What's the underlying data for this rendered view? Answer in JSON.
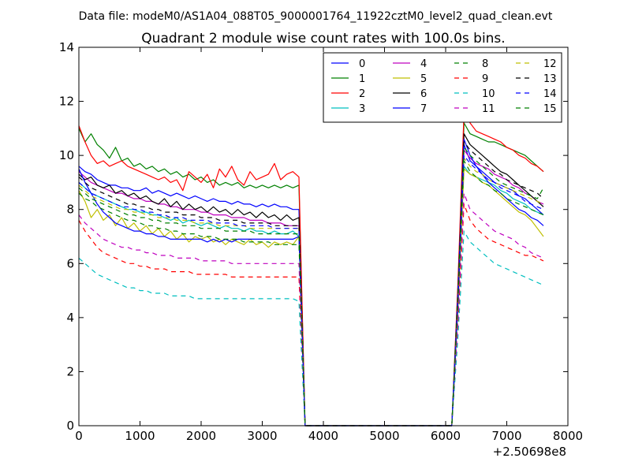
{
  "chart_data": {
    "type": "line",
    "suptitle": "Data file: modeM0/AS1A04_088T05_9000001764_11922cztM0_level2_quad_clean.evt",
    "title": "Quadrant 2 module wise count rates with 100.0s bins.",
    "xlabel": "",
    "ylabel": "",
    "x_offset_label": "+2.50698e8",
    "xlim": [
      0,
      8000
    ],
    "ylim": [
      0,
      14
    ],
    "xticks": [
      0,
      1000,
      2000,
      3000,
      4000,
      5000,
      6000,
      7000,
      8000
    ],
    "yticks": [
      0,
      2,
      4,
      6,
      8,
      10,
      12,
      14
    ],
    "grid": false,
    "legend_position": "top-right",
    "legend_columns": 4,
    "bin_seconds": 100,
    "segments": [
      {
        "x_start": 0,
        "x_end": 3600,
        "step": 100
      },
      {
        "x_start": 6300,
        "x_end": 7600,
        "step": 100
      }
    ],
    "ramp_down": {
      "x": [
        3600,
        3700
      ],
      "factors": [
        0.82,
        0.0
      ]
    },
    "ramp_up": {
      "x": [
        6100,
        6200,
        6300
      ],
      "factors": [
        0.0,
        0.45,
        1.0
      ]
    },
    "series": [
      {
        "name": "0",
        "color": "#0000ff",
        "dash": "solid",
        "seg1": [
          9.6,
          9.4,
          9.3,
          9.1,
          9.0,
          8.9,
          8.9,
          8.8,
          8.8,
          8.7,
          8.7,
          8.8,
          8.6,
          8.7,
          8.6,
          8.5,
          8.6,
          8.5,
          8.4,
          8.5,
          8.4,
          8.3,
          8.4,
          8.3,
          8.3,
          8.2,
          8.3,
          8.2,
          8.2,
          8.1,
          8.2,
          8.1,
          8.2,
          8.1,
          8.1,
          8.0,
          8.0
        ],
        "seg2": [
          10.4,
          9.8,
          9.6,
          9.4,
          9.2,
          9.0,
          8.9,
          8.8,
          8.7,
          8.5,
          8.4,
          8.2,
          8.0,
          7.8
        ]
      },
      {
        "name": "1",
        "color": "#008000",
        "dash": "solid",
        "seg1": [
          11.0,
          10.5,
          10.8,
          10.4,
          10.2,
          9.9,
          10.3,
          9.8,
          9.9,
          9.6,
          9.7,
          9.5,
          9.6,
          9.4,
          9.5,
          9.3,
          9.4,
          9.2,
          9.3,
          9.1,
          9.2,
          9.0,
          9.1,
          8.9,
          9.0,
          8.9,
          9.0,
          8.8,
          8.9,
          8.8,
          8.9,
          8.8,
          8.9,
          8.8,
          8.9,
          8.8,
          8.9
        ],
        "seg2": [
          11.2,
          10.8,
          10.7,
          10.6,
          10.5,
          10.5,
          10.4,
          10.3,
          10.2,
          10.1,
          10.0,
          9.8,
          9.6,
          9.4
        ]
      },
      {
        "name": "2",
        "color": "#ff0000",
        "dash": "solid",
        "seg1": [
          11.1,
          10.5,
          10.0,
          9.7,
          9.8,
          9.6,
          9.7,
          9.8,
          9.6,
          9.5,
          9.4,
          9.3,
          9.2,
          9.1,
          9.2,
          9.0,
          9.1,
          8.7,
          9.4,
          9.2,
          9.0,
          9.3,
          8.8,
          9.5,
          9.2,
          9.6,
          9.1,
          8.9,
          9.4,
          9.1,
          9.2,
          9.3,
          9.7,
          9.1,
          9.3,
          9.4,
          9.2
        ],
        "seg2": [
          11.6,
          11.2,
          10.9,
          10.8,
          10.7,
          10.6,
          10.5,
          10.3,
          10.2,
          10.0,
          9.9,
          9.7,
          9.6,
          9.4
        ]
      },
      {
        "name": "3",
        "color": "#00bfbf",
        "dash": "solid",
        "seg1": [
          9.0,
          8.8,
          8.6,
          8.5,
          8.4,
          8.3,
          8.2,
          8.1,
          8.0,
          8.0,
          7.9,
          7.9,
          7.8,
          7.8,
          7.7,
          7.6,
          7.7,
          7.5,
          7.6,
          7.5,
          7.4,
          7.5,
          7.4,
          7.3,
          7.4,
          7.3,
          7.3,
          7.2,
          7.3,
          7.2,
          7.2,
          7.1,
          7.2,
          7.1,
          7.1,
          7.2,
          7.0
        ],
        "seg2": [
          9.6,
          9.3,
          9.2,
          9.1,
          9.0,
          8.9,
          8.7,
          8.6,
          8.4,
          8.3,
          8.2,
          8.0,
          7.9,
          7.8
        ]
      },
      {
        "name": "4",
        "color": "#bf00bf",
        "dash": "solid",
        "seg1": [
          9.4,
          9.2,
          9.0,
          8.9,
          8.8,
          8.7,
          8.6,
          8.6,
          8.5,
          8.4,
          8.4,
          8.3,
          8.3,
          8.2,
          8.2,
          8.1,
          8.1,
          8.0,
          8.0,
          8.0,
          7.9,
          7.9,
          7.8,
          7.8,
          7.8,
          7.7,
          7.7,
          7.7,
          7.6,
          7.6,
          7.6,
          7.5,
          7.5,
          7.5,
          7.4,
          7.4,
          7.4
        ],
        "seg2": [
          10.2,
          9.9,
          9.7,
          9.6,
          9.5,
          9.3,
          9.2,
          9.1,
          8.9,
          8.8,
          8.6,
          8.5,
          8.3,
          8.2
        ]
      },
      {
        "name": "5",
        "color": "#bfbf00",
        "dash": "solid",
        "seg1": [
          8.7,
          8.3,
          7.7,
          8.0,
          7.6,
          7.8,
          7.4,
          7.7,
          7.3,
          7.5,
          7.2,
          7.4,
          7.1,
          7.3,
          7.0,
          7.2,
          6.9,
          7.1,
          6.8,
          7.0,
          6.9,
          7.0,
          6.8,
          6.9,
          6.7,
          6.9,
          6.8,
          6.7,
          6.9,
          6.7,
          6.8,
          6.6,
          6.8,
          6.7,
          6.8,
          6.7,
          7.0
        ],
        "seg2": [
          9.5,
          9.3,
          9.2,
          9.0,
          8.9,
          8.7,
          8.5,
          8.3,
          8.1,
          7.9,
          7.8,
          7.6,
          7.3,
          7.0
        ]
      },
      {
        "name": "6",
        "color": "#000000",
        "dash": "solid",
        "seg1": [
          9.3,
          9.1,
          9.2,
          8.9,
          8.8,
          8.9,
          8.6,
          8.7,
          8.5,
          8.6,
          8.4,
          8.5,
          8.3,
          8.2,
          8.4,
          8.1,
          8.3,
          8.0,
          8.2,
          8.0,
          8.1,
          7.9,
          8.1,
          7.9,
          8.0,
          7.8,
          8.0,
          7.8,
          7.9,
          7.7,
          7.9,
          7.7,
          7.8,
          7.6,
          7.8,
          7.6,
          7.7
        ],
        "seg2": [
          10.8,
          10.4,
          10.2,
          10.0,
          9.8,
          9.6,
          9.4,
          9.3,
          9.1,
          8.9,
          8.7,
          8.5,
          8.3,
          8.1
        ]
      },
      {
        "name": "7",
        "color": "#0000ff",
        "dash": "solid",
        "seg1": [
          9.5,
          9.0,
          8.6,
          8.2,
          7.9,
          7.7,
          7.5,
          7.4,
          7.3,
          7.2,
          7.2,
          7.1,
          7.1,
          7.0,
          7.0,
          6.9,
          6.9,
          6.9,
          6.9,
          6.9,
          6.9,
          6.8,
          6.9,
          6.8,
          6.9,
          6.8,
          6.9,
          6.9,
          6.9,
          6.9,
          6.9,
          6.9,
          6.9,
          6.9,
          6.9,
          6.9,
          7.0
        ],
        "seg2": [
          10.6,
          10.0,
          9.6,
          9.3,
          9.0,
          8.8,
          8.6,
          8.4,
          8.2,
          8.0,
          7.9,
          7.7,
          7.6,
          7.4
        ]
      },
      {
        "name": "8",
        "color": "#008000",
        "dash": "dashed",
        "seg1": [
          8.6,
          8.4,
          8.3,
          8.1,
          8.0,
          7.9,
          7.8,
          7.7,
          7.6,
          7.6,
          7.5,
          7.4,
          7.4,
          7.3,
          7.3,
          7.2,
          7.2,
          7.1,
          7.1,
          7.1,
          7.0,
          7.0,
          7.0,
          6.9,
          6.9,
          6.9,
          6.9,
          6.8,
          6.8,
          6.8,
          6.8,
          6.8,
          6.7,
          6.7,
          6.7,
          6.7,
          6.7
        ],
        "seg2": [
          9.8,
          9.4,
          9.2,
          9.0,
          8.9,
          8.7,
          8.6,
          8.4,
          8.3,
          8.2,
          8.1,
          8.0,
          7.9,
          7.8
        ]
      },
      {
        "name": "9",
        "color": "#ff0000",
        "dash": "dashed",
        "seg1": [
          7.6,
          7.2,
          6.9,
          6.6,
          6.4,
          6.3,
          6.2,
          6.1,
          6.0,
          6.0,
          5.9,
          5.9,
          5.8,
          5.8,
          5.8,
          5.7,
          5.7,
          5.7,
          5.7,
          5.6,
          5.6,
          5.6,
          5.6,
          5.6,
          5.6,
          5.5,
          5.5,
          5.5,
          5.5,
          5.5,
          5.5,
          5.5,
          5.5,
          5.5,
          5.5,
          5.5,
          5.5
        ],
        "seg2": [
          8.2,
          7.6,
          7.3,
          7.1,
          6.9,
          6.8,
          6.7,
          6.6,
          6.5,
          6.4,
          6.3,
          6.3,
          6.2,
          6.1
        ]
      },
      {
        "name": "10",
        "color": "#00bfbf",
        "dash": "dashed",
        "seg1": [
          6.2,
          6.0,
          5.8,
          5.6,
          5.5,
          5.4,
          5.3,
          5.2,
          5.1,
          5.1,
          5.0,
          5.0,
          4.9,
          4.9,
          4.9,
          4.8,
          4.8,
          4.8,
          4.8,
          4.7,
          4.7,
          4.7,
          4.7,
          4.7,
          4.7,
          4.7,
          4.7,
          4.7,
          4.7,
          4.7,
          4.7,
          4.7,
          4.7,
          4.7,
          4.7,
          4.7,
          4.6
        ],
        "seg2": [
          7.2,
          6.8,
          6.6,
          6.4,
          6.2,
          6.0,
          5.9,
          5.8,
          5.7,
          5.6,
          5.5,
          5.4,
          5.3,
          5.2
        ]
      },
      {
        "name": "11",
        "color": "#bf00bf",
        "dash": "dashed",
        "seg1": [
          7.8,
          7.5,
          7.3,
          7.1,
          6.9,
          6.8,
          6.7,
          6.6,
          6.6,
          6.5,
          6.5,
          6.4,
          6.4,
          6.3,
          6.3,
          6.3,
          6.2,
          6.2,
          6.2,
          6.2,
          6.1,
          6.1,
          6.1,
          6.1,
          6.1,
          6.0,
          6.0,
          6.0,
          6.0,
          6.0,
          6.0,
          6.0,
          6.0,
          6.0,
          6.0,
          6.0,
          6.0
        ],
        "seg2": [
          8.6,
          8.0,
          7.8,
          7.6,
          7.4,
          7.2,
          7.1,
          7.0,
          6.9,
          6.7,
          6.6,
          6.4,
          6.3,
          6.2
        ]
      },
      {
        "name": "12",
        "color": "#bfbf00",
        "dash": "dashed",
        "seg1": [
          8.9,
          8.7,
          8.5,
          8.4,
          8.3,
          8.2,
          8.1,
          8.0,
          8.0,
          7.9,
          7.9,
          7.8,
          7.8,
          7.7,
          7.7,
          7.7,
          7.6,
          7.6,
          7.6,
          7.5,
          7.5,
          7.5,
          7.5,
          7.4,
          7.4,
          7.4,
          7.4,
          7.4,
          7.3,
          7.3,
          7.3,
          7.3,
          7.3,
          7.3,
          7.3,
          7.3,
          7.3
        ],
        "seg2": [
          9.9,
          9.6,
          9.4,
          9.3,
          9.1,
          9.0,
          8.9,
          8.8,
          8.7,
          8.6,
          8.5,
          8.4,
          8.3,
          8.2
        ]
      },
      {
        "name": "13",
        "color": "#000000",
        "dash": "dashed",
        "seg1": [
          9.2,
          9.0,
          8.8,
          8.7,
          8.6,
          8.5,
          8.4,
          8.3,
          8.2,
          8.2,
          8.1,
          8.1,
          8.0,
          8.0,
          7.9,
          7.9,
          7.9,
          7.8,
          7.8,
          7.8,
          7.7,
          7.7,
          7.7,
          7.6,
          7.6,
          7.6,
          7.6,
          7.5,
          7.5,
          7.5,
          7.5,
          7.5,
          7.4,
          7.4,
          7.4,
          7.4,
          7.4
        ],
        "seg2": [
          10.5,
          10.2,
          10.0,
          9.8,
          9.6,
          9.4,
          9.3,
          9.1,
          9.0,
          8.9,
          8.8,
          8.7,
          8.6,
          8.4
        ]
      },
      {
        "name": "14",
        "color": "#0000ff",
        "dash": "dashed",
        "seg1": [
          9.0,
          8.8,
          8.6,
          8.5,
          8.4,
          8.3,
          8.2,
          8.1,
          8.1,
          8.0,
          8.0,
          7.9,
          7.9,
          7.8,
          7.8,
          7.7,
          7.7,
          7.7,
          7.6,
          7.6,
          7.6,
          7.6,
          7.5,
          7.5,
          7.5,
          7.5,
          7.4,
          7.4,
          7.4,
          7.4,
          7.4,
          7.4,
          7.3,
          7.3,
          7.3,
          7.3,
          7.3
        ],
        "seg2": [
          10.0,
          9.7,
          9.5,
          9.3,
          9.1,
          9.0,
          8.8,
          8.7,
          8.6,
          8.5,
          8.3,
          8.2,
          8.1,
          8.0
        ]
      },
      {
        "name": "15",
        "color": "#008000",
        "dash": "dashed",
        "seg1": [
          8.8,
          8.6,
          8.4,
          8.3,
          8.2,
          8.1,
          8.0,
          7.9,
          7.8,
          7.8,
          7.7,
          7.7,
          7.6,
          7.6,
          7.5,
          7.5,
          7.5,
          7.4,
          7.4,
          7.4,
          7.3,
          7.3,
          7.3,
          7.3,
          7.2,
          7.2,
          7.2,
          7.2,
          7.2,
          7.1,
          7.1,
          7.1,
          7.1,
          7.1,
          7.1,
          7.1,
          7.1
        ],
        "seg2": [
          10.3,
          10.0,
          9.8,
          9.6,
          9.4,
          9.2,
          9.0,
          8.9,
          8.8,
          8.7,
          8.6,
          8.5,
          8.4,
          8.8
        ]
      }
    ]
  }
}
